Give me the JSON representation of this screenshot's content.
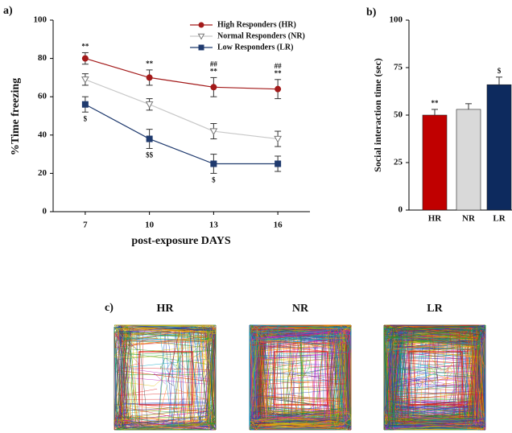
{
  "chart_data": [
    {
      "type": "line",
      "panel_label": "a)",
      "y_label": "%Time freezing",
      "x_label": "post-exposure DAYS",
      "categories": [
        "7",
        "10",
        "13",
        "16"
      ],
      "ylim": [
        0,
        100
      ],
      "yticks": [
        0,
        20,
        40,
        60,
        80,
        100
      ],
      "legend": "upper right",
      "series": [
        {
          "name": "High Responders (HR)",
          "color": "#a31a1a",
          "marker": "circle",
          "values": [
            80,
            70,
            65,
            64
          ],
          "errors": [
            3,
            4,
            5,
            5
          ],
          "annotations": [
            [
              "**"
            ],
            [
              "**"
            ],
            [
              "##",
              "**"
            ],
            [
              "##",
              "**"
            ]
          ]
        },
        {
          "name": "Normal Responders (NR)",
          "color": "#c8c8c8",
          "marker": "triangle-down",
          "values": [
            69,
            56,
            42,
            38
          ],
          "errors": [
            3,
            3,
            4,
            4
          ],
          "annotations": [
            [],
            [],
            [],
            []
          ]
        },
        {
          "name": "Low Responders (LR)",
          "color": "#1f3a6e",
          "marker": "square",
          "values": [
            56,
            38,
            25,
            25
          ],
          "errors": [
            4,
            5,
            5,
            4
          ],
          "annotations": [
            [
              "$"
            ],
            [
              "$$"
            ],
            [
              "$"
            ],
            []
          ]
        }
      ]
    },
    {
      "type": "bar",
      "panel_label": "b)",
      "y_label": "Social interaction time (sec)",
      "categories": [
        "HR",
        "NR",
        "LR"
      ],
      "values": [
        50,
        53,
        66
      ],
      "errors": [
        3,
        3,
        4
      ],
      "colors": [
        "#c00000",
        "#d9d9d9",
        "#0d2a5e"
      ],
      "ylim": [
        0,
        100
      ],
      "yticks": [
        0,
        25,
        50,
        75,
        100
      ],
      "annotations": [
        [
          "**"
        ],
        [],
        [
          "$"
        ]
      ]
    }
  ],
  "panel_c": {
    "label": "c)",
    "titles": [
      "HR",
      "NR",
      "LR"
    ]
  }
}
